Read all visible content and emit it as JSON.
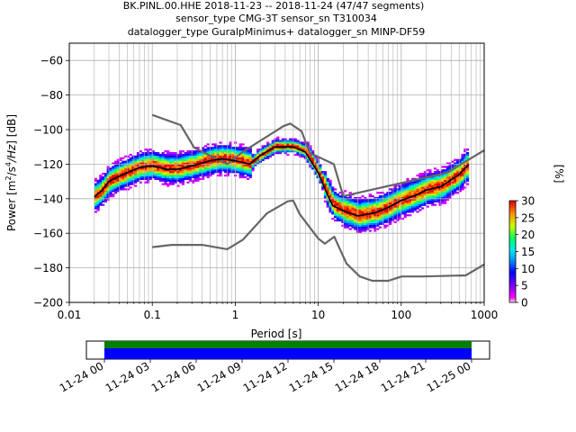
{
  "title": {
    "line1": "BK.PINL.00.HHE   2018-11-23 -- 2018-11-24  (47/47 segments)",
    "line2": "sensor_type CMG-3T sensor_sn T310034",
    "line3": "datalogger_type GuralpMinimus+ datalogger_sn MINP-DF59"
  },
  "chart_data": [
    {
      "type": "heatmap",
      "xlabel": "Period [s]",
      "ylabel_prefix": "Power [",
      "ylabel_suffix": "] [dB]",
      "x_scale": "log",
      "xlim": [
        0.01,
        1000
      ],
      "ylim": [
        -200,
        -50
      ],
      "grid": true,
      "x_ticks": [
        {
          "value": 0.01,
          "label": "0.01"
        },
        {
          "value": 0.1,
          "label": "0.1"
        },
        {
          "value": 1,
          "label": "1"
        },
        {
          "value": 10,
          "label": "10"
        },
        {
          "value": 100,
          "label": "100"
        },
        {
          "value": 1000,
          "label": "1000"
        }
      ],
      "y_ticks": [
        {
          "value": -200,
          "label": "−200"
        },
        {
          "value": -180,
          "label": "−180"
        },
        {
          "value": -160,
          "label": "−160"
        },
        {
          "value": -140,
          "label": "−140"
        },
        {
          "value": -120,
          "label": "−120"
        },
        {
          "value": -100,
          "label": "−100"
        },
        {
          "value": -80,
          "label": "−80"
        },
        {
          "value": -60,
          "label": "−60"
        }
      ],
      "series": [
        {
          "role": "noise-model-high",
          "color": "#666666",
          "points": [
            [
              0.1,
              -91.5
            ],
            [
              0.22,
              -97.4
            ],
            [
              0.32,
              -110.5
            ],
            [
              0.8,
              -120
            ],
            [
              1.24,
              -112.8
            ],
            [
              3.8,
              -98
            ],
            [
              4.6,
              -96.5
            ],
            [
              6.3,
              -101
            ],
            [
              7.9,
              -113.5
            ],
            [
              15.4,
              -120
            ],
            [
              20,
              -138.5
            ],
            [
              354,
              -125
            ],
            [
              1000,
              -112
            ]
          ]
        },
        {
          "role": "noise-model-low",
          "color": "#666666",
          "points": [
            [
              0.1,
              -168
            ],
            [
              0.17,
              -166.7
            ],
            [
              0.4,
              -166.7
            ],
            [
              0.8,
              -169.2
            ],
            [
              1.24,
              -163.7
            ],
            [
              2.4,
              -148.5
            ],
            [
              4.3,
              -141.5
            ],
            [
              5.0,
              -141.1
            ],
            [
              6.0,
              -149
            ],
            [
              10,
              -163
            ],
            [
              12,
              -166
            ],
            [
              15.6,
              -162
            ],
            [
              21.9,
              -177.5
            ],
            [
              31.6,
              -185
            ],
            [
              45,
              -187.5
            ],
            [
              70,
              -187.5
            ],
            [
              101,
              -185
            ],
            [
              178,
              -185
            ],
            [
              600,
              -184.4
            ],
            [
              1000,
              -178
            ]
          ]
        },
        {
          "role": "mode",
          "color": "#000000",
          "points": [
            [
              0.02,
              -139
            ],
            [
              0.025,
              -135
            ],
            [
              0.03,
              -130
            ],
            [
              0.04,
              -127
            ],
            [
              0.05,
              -125
            ],
            [
              0.07,
              -122
            ],
            [
              0.1,
              -121
            ],
            [
              0.15,
              -123
            ],
            [
              0.2,
              -123
            ],
            [
              0.3,
              -121
            ],
            [
              0.5,
              -118
            ],
            [
              0.7,
              -117
            ],
            [
              1,
              -118
            ],
            [
              1.5,
              -120
            ],
            [
              2,
              -115
            ],
            [
              3,
              -110
            ],
            [
              5,
              -110
            ],
            [
              7,
              -113
            ],
            [
              10,
              -125
            ],
            [
              13,
              -138
            ],
            [
              15,
              -144
            ],
            [
              20,
              -147
            ],
            [
              30,
              -150
            ],
            [
              50,
              -148
            ],
            [
              70,
              -145
            ],
            [
              100,
              -141
            ],
            [
              150,
              -138
            ],
            [
              200,
              -135
            ],
            [
              300,
              -133
            ],
            [
              500,
              -126
            ],
            [
              650,
              -120
            ]
          ]
        }
      ],
      "colorbar": {
        "label": "[%]",
        "range": [
          0,
          30
        ],
        "ticks": [
          0,
          5,
          10,
          15,
          20,
          25,
          30
        ]
      }
    },
    {
      "type": "timeline",
      "x_ticks": [
        "11-24 00",
        "11-24 03",
        "11-24 06",
        "11-24 09",
        "11-24 12",
        "11-24 15",
        "11-24 18",
        "11-24 21",
        "11-25 00"
      ],
      "coverage_fraction": 1.0,
      "colors": {
        "upper": "#008000",
        "lower": "#0000ff"
      }
    }
  ]
}
